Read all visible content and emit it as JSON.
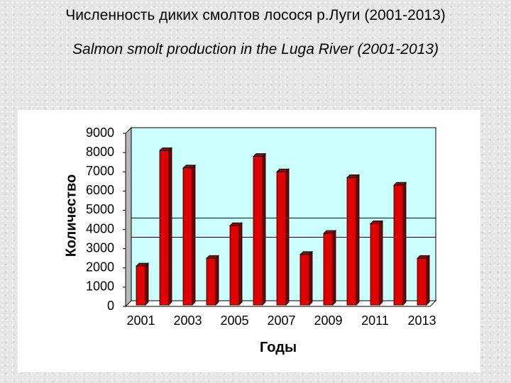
{
  "title_ru": "Численность диких смолтов лосося р.Луги (2001-2013)",
  "title_en": "Salmon smolt production in the Luga River (2001-2013)",
  "chart_data": {
    "type": "bar",
    "title": "",
    "xlabel": "Годы",
    "ylabel": "Количество",
    "categories": [
      "2001",
      "2002",
      "2003",
      "2004",
      "2005",
      "2006",
      "2007",
      "2008",
      "2009",
      "2010",
      "2011",
      "2012",
      "2013"
    ],
    "x_tick_labels": [
      "2001",
      "2003",
      "2005",
      "2007",
      "2009",
      "2011",
      "2013"
    ],
    "values": [
      2100,
      8100,
      7200,
      2500,
      4200,
      7800,
      7000,
      2700,
      3800,
      6700,
      4300,
      6300,
      2500
    ],
    "ylim": [
      0,
      9000
    ],
    "y_ticks": [
      0,
      1000,
      2000,
      3000,
      4000,
      5000,
      6000,
      7000,
      8000,
      9000
    ],
    "reference_lines": [
      3300,
      4300
    ],
    "bar_color": "#e00000",
    "plot_background": "#ccffff",
    "grid": false,
    "legend": "none"
  }
}
